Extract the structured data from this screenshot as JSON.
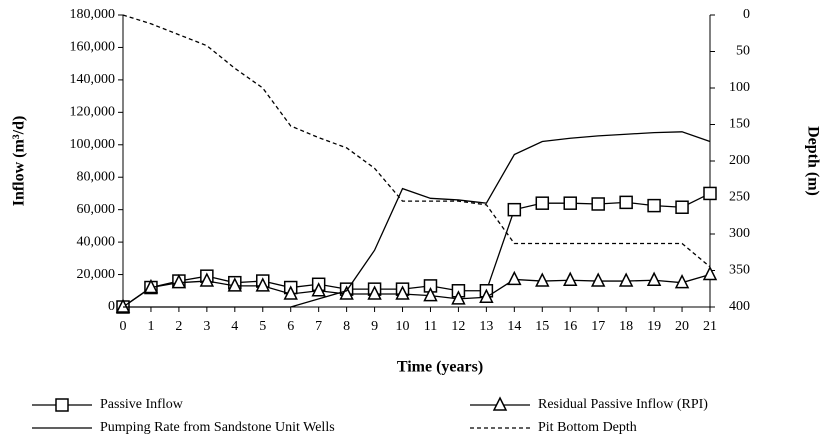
{
  "chart_data": {
    "type": "line",
    "xlabel": "Time (years)",
    "ylabel": "Inflow (m³/d)",
    "y2label": "Depth (m)",
    "x": [
      0,
      1,
      2,
      3,
      4,
      5,
      6,
      7,
      8,
      9,
      10,
      11,
      12,
      13,
      14,
      15,
      16,
      17,
      18,
      19,
      20,
      21
    ],
    "xlim": [
      0,
      21
    ],
    "xticks": [
      0,
      1,
      2,
      3,
      4,
      5,
      6,
      7,
      8,
      9,
      10,
      11,
      12,
      13,
      14,
      15,
      16,
      17,
      18,
      19,
      20,
      21
    ],
    "ylim": [
      0,
      180000
    ],
    "yticks": [
      0,
      {
        "value": 20000,
        "label": "20,000"
      },
      {
        "value": 40000,
        "label": "40,000"
      },
      {
        "value": 60000,
        "label": "60,000"
      },
      {
        "value": 80000,
        "label": "80,000"
      },
      {
        "value": 100000,
        "label": "100,000"
      },
      {
        "value": 120000,
        "label": "120,000"
      },
      {
        "value": 140000,
        "label": "140,000"
      },
      {
        "value": 160000,
        "label": "160,000"
      },
      {
        "value": 180000,
        "label": "180,000"
      }
    ],
    "y2lim": [
      400,
      0
    ],
    "y2ticks": [
      0,
      50,
      100,
      150,
      200,
      250,
      300,
      350,
      400
    ],
    "series": [
      {
        "name": "Passive Inflow",
        "color": "#000000",
        "marker": "square",
        "dash": false,
        "values": [
          0,
          12000,
          16000,
          19000,
          15000,
          16000,
          12000,
          14000,
          11000,
          11000,
          11000,
          13000,
          10000,
          10000,
          60000,
          64000,
          64000,
          63500,
          64500,
          62500,
          61500,
          70000
        ]
      },
      {
        "name": "Residual Passive Inflow (RPI)",
        "color": "#000000",
        "marker": "triangle",
        "dash": false,
        "values": [
          0,
          12000,
          15000,
          16000,
          13000,
          13000,
          8000,
          10000,
          8000,
          8000,
          8000,
          7000,
          5000,
          6000,
          17000,
          16000,
          16500,
          16000,
          16000,
          16500,
          15000,
          20000
        ]
      },
      {
        "name": "Pumping Rate from Sandstone Unit Wells",
        "color": "#000000",
        "marker": "none",
        "dash": false,
        "values": [
          0,
          0,
          0,
          0,
          0,
          0,
          0,
          5000,
          10000,
          35000,
          73000,
          67000,
          66000,
          64000,
          94000,
          102000,
          104000,
          105500,
          106500,
          107500,
          108000,
          102000
        ]
      },
      {
        "name": "Pit Bottom Depth",
        "color": "#000000",
        "marker": "none",
        "dash": true,
        "axis": "y2",
        "values": [
          0,
          12,
          27,
          42,
          73,
          100,
          152,
          168,
          182,
          210,
          255,
          255,
          255,
          260,
          313,
          313,
          313,
          313,
          313,
          313,
          313,
          345
        ]
      }
    ]
  }
}
